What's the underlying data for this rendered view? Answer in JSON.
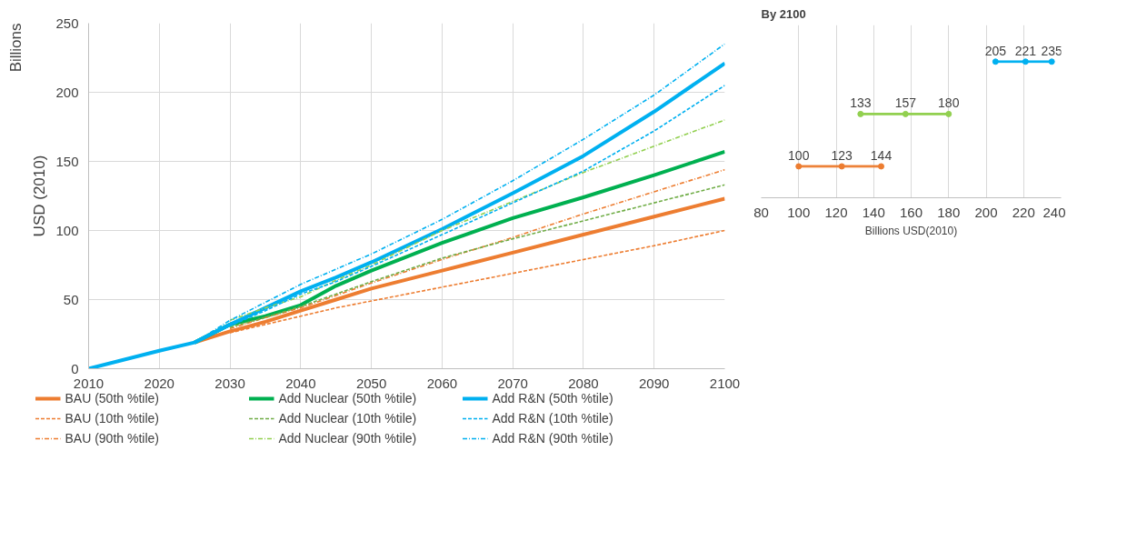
{
  "chart_data": [
    {
      "type": "line",
      "ylabel": "USD (2010)",
      "annotations": [
        "Billions"
      ],
      "x": [
        2010,
        2020,
        2025,
        2030,
        2035,
        2040,
        2045,
        2050,
        2060,
        2070,
        2080,
        2090,
        2100
      ],
      "xlim": [
        2010,
        2100
      ],
      "xticks": [
        2010,
        2020,
        2030,
        2040,
        2050,
        2060,
        2070,
        2080,
        2090,
        2100
      ],
      "ylim": [
        0,
        250
      ],
      "yticks": [
        0,
        50,
        100,
        150,
        200,
        250
      ],
      "grid": true,
      "legend": "bottom",
      "series": [
        {
          "name": "BAU (50th %tile)",
          "color": "#ed7d31",
          "line_style": "solid",
          "values": [
            null,
            null,
            19,
            27,
            34,
            42,
            50,
            58,
            71,
            84,
            97,
            110,
            123
          ]
        },
        {
          "name": "BAU (10th %tile)",
          "color": "#ed7d31",
          "line_style": "dashed",
          "values": [
            null,
            null,
            null,
            26,
            32,
            38,
            44,
            49,
            59,
            69,
            79,
            89,
            100
          ]
        },
        {
          "name": "BAU (90th %tile)",
          "color": "#ed7d31",
          "line_style": "dashdot",
          "values": [
            null,
            null,
            null,
            29,
            37,
            44,
            53,
            62,
            79,
            95,
            112,
            128,
            144
          ]
        },
        {
          "name": "Add Nuclear (50th %tile)",
          "color": "#00b050",
          "line_style": "solid",
          "values": [
            null,
            null,
            19,
            32,
            38,
            46,
            60,
            71,
            91,
            109,
            124,
            140,
            157
          ]
        },
        {
          "name": "Add Nuclear (10th %tile)",
          "color": "#70ad47",
          "line_style": "dashed",
          "values": [
            null,
            null,
            null,
            30,
            37,
            45,
            54,
            63,
            80,
            94,
            107,
            120,
            133
          ]
        },
        {
          "name": "Add Nuclear (90th %tile)",
          "color": "#92d050",
          "line_style": "dashdot",
          "values": [
            null,
            null,
            null,
            35,
            44,
            52,
            64,
            75,
            100,
            121,
            142,
            161,
            180
          ]
        },
        {
          "name": "Add R&N (50th %tile)",
          "color": "#00b0f0",
          "line_style": "solid",
          "values": [
            0,
            13,
            19,
            32,
            44,
            56,
            66,
            77,
            101,
            127,
            154,
            186,
            221
          ]
        },
        {
          "name": "Add R&N (10th %tile)",
          "color": "#00b0f0",
          "line_style": "dashed",
          "values": [
            null,
            null,
            19,
            31,
            42,
            54,
            63,
            74,
            97,
            120,
            143,
            172,
            205
          ]
        },
        {
          "name": "Add R&N (90th %tile)",
          "color": "#00b0f0",
          "line_style": "dashdot",
          "values": [
            null,
            null,
            19,
            35,
            48,
            61,
            72,
            83,
            108,
            136,
            166,
            198,
            235
          ]
        }
      ]
    },
    {
      "type": "bar",
      "orientation": "horizontal",
      "title": "By 2100",
      "xlabel": "Billions USD(2010)",
      "categories": [
        null,
        null,
        null
      ],
      "xlim": [
        80,
        240
      ],
      "xticks": [
        80,
        100,
        120,
        140,
        160,
        180,
        200,
        220,
        240
      ],
      "grid": "x",
      "series": [
        {
          "type": "bar",
          "colors": [
            "#00b0f0",
            "#92d050",
            "#ed7d31"
          ],
          "base": [
            205,
            133,
            100
          ],
          "values": [
            30,
            47,
            44
          ]
        },
        {
          "type": "scatter",
          "colors": [
            "#00b0f0",
            "#92d050",
            "#ed7d31"
          ],
          "values": [
            205,
            133,
            100
          ],
          "value_labels": [
            "205",
            "133",
            "100"
          ]
        },
        {
          "type": "scatter",
          "colors": [
            "#00b0f0",
            "#92d050",
            "#ed7d31"
          ],
          "values": [
            221,
            157,
            123
          ],
          "value_labels": [
            "221",
            "157",
            "123"
          ]
        },
        {
          "type": "scatter",
          "colors": [
            "#00b0f0",
            "#92d050",
            "#ed7d31"
          ],
          "values": [
            235,
            180,
            144
          ],
          "value_labels": [
            "235",
            "180",
            "144"
          ]
        }
      ]
    }
  ]
}
